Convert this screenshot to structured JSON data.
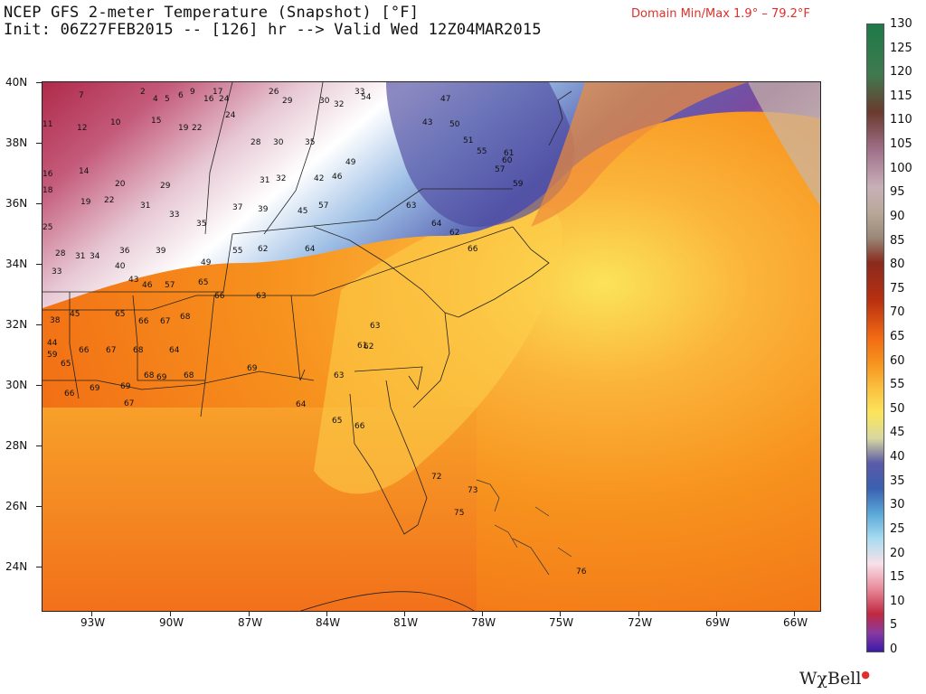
{
  "header": {
    "title_line1": "NCEP GFS 2-meter Temperature (Snapshot) [°F]",
    "title_line2": "Init: 06Z27FEB2015 -- [126] hr --> Valid Wed 12Z04MAR2015",
    "domain_minmax": "Domain Min/Max   1.9° –  79.2°F"
  },
  "map": {
    "lat_labels": [
      "40N",
      "38N",
      "36N",
      "34N",
      "32N",
      "30N",
      "28N",
      "26N",
      "24N"
    ],
    "lon_labels": [
      "93W",
      "90W",
      "87W",
      "84W",
      "81W",
      "78W",
      "75W",
      "72W",
      "69W",
      "66W"
    ],
    "colors": {
      "warm_orange": "#f7931e",
      "deep_orange": "#f26b14",
      "yellow": "#fbe55c",
      "cold_purple": "#6a2d8a",
      "cold_blue": "#7fa8d8"
    }
  },
  "colorbar": {
    "labels": [
      "130",
      "125",
      "120",
      "115",
      "110",
      "105",
      "100",
      "95",
      "90",
      "85",
      "80",
      "75",
      "70",
      "65",
      "60",
      "55",
      "50",
      "45",
      "40",
      "35",
      "30",
      "25",
      "20",
      "15",
      "10",
      "5",
      "0"
    ]
  },
  "stations": [
    {
      "t": "7"
    },
    {
      "t": "2"
    },
    {
      "t": "4"
    },
    {
      "t": "5"
    },
    {
      "t": "6"
    },
    {
      "t": "9"
    },
    {
      "t": "16"
    },
    {
      "t": "17"
    },
    {
      "t": "24"
    },
    {
      "t": "26"
    },
    {
      "t": "29"
    },
    {
      "t": "30"
    },
    {
      "t": "32"
    },
    {
      "t": "33"
    },
    {
      "t": "54"
    },
    {
      "t": "11"
    },
    {
      "t": "12"
    },
    {
      "t": "10"
    },
    {
      "t": "15"
    },
    {
      "t": "19"
    },
    {
      "t": "22"
    },
    {
      "t": "24"
    },
    {
      "t": "28"
    },
    {
      "t": "30"
    },
    {
      "t": "35"
    },
    {
      "t": "14"
    },
    {
      "t": "16"
    },
    {
      "t": "20"
    },
    {
      "t": "29"
    },
    {
      "t": "31"
    },
    {
      "t": "32"
    },
    {
      "t": "42"
    },
    {
      "t": "46"
    },
    {
      "t": "49"
    },
    {
      "t": "18"
    },
    {
      "t": "19"
    },
    {
      "t": "22"
    },
    {
      "t": "31"
    },
    {
      "t": "33"
    },
    {
      "t": "35"
    },
    {
      "t": "37"
    },
    {
      "t": "39"
    },
    {
      "t": "45"
    },
    {
      "t": "57"
    },
    {
      "t": "25"
    },
    {
      "t": "28"
    },
    {
      "t": "31"
    },
    {
      "t": "34"
    },
    {
      "t": "36"
    },
    {
      "t": "39"
    },
    {
      "t": "49"
    },
    {
      "t": "55"
    },
    {
      "t": "62"
    },
    {
      "t": "64"
    },
    {
      "t": "33"
    },
    {
      "t": "40"
    },
    {
      "t": "43"
    },
    {
      "t": "46"
    },
    {
      "t": "57"
    },
    {
      "t": "65"
    },
    {
      "t": "66"
    },
    {
      "t": "63"
    },
    {
      "t": "38"
    },
    {
      "t": "45"
    },
    {
      "t": "65"
    },
    {
      "t": "66"
    },
    {
      "t": "67"
    },
    {
      "t": "68"
    },
    {
      "t": "63"
    },
    {
      "t": "62"
    },
    {
      "t": "44"
    },
    {
      "t": "59"
    },
    {
      "t": "66"
    },
    {
      "t": "67"
    },
    {
      "t": "68"
    },
    {
      "t": "64"
    },
    {
      "t": "61"
    },
    {
      "t": "65"
    },
    {
      "t": "69"
    },
    {
      "t": "68"
    },
    {
      "t": "69"
    },
    {
      "t": "68"
    },
    {
      "t": "69"
    },
    {
      "t": "63"
    },
    {
      "t": "66"
    },
    {
      "t": "69"
    },
    {
      "t": "67"
    },
    {
      "t": "64"
    },
    {
      "t": "65"
    },
    {
      "t": "66"
    },
    {
      "t": "47"
    },
    {
      "t": "43"
    },
    {
      "t": "50"
    },
    {
      "t": "51"
    },
    {
      "t": "55"
    },
    {
      "t": "57"
    },
    {
      "t": "59"
    },
    {
      "t": "60"
    },
    {
      "t": "61"
    },
    {
      "t": "63"
    },
    {
      "t": "64"
    },
    {
      "t": "62"
    },
    {
      "t": "66"
    },
    {
      "t": "72"
    },
    {
      "t": "73"
    },
    {
      "t": "75"
    },
    {
      "t": "76"
    }
  ],
  "logo": {
    "text": "WχBell"
  }
}
